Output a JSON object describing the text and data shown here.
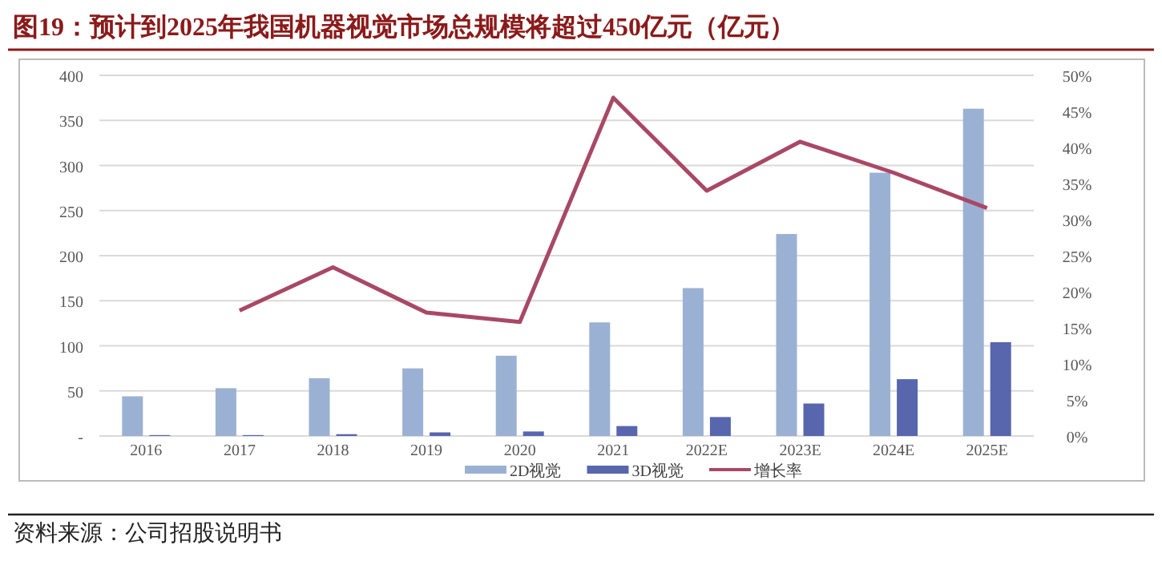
{
  "chart_data": {
    "type": "bar",
    "title": "图19：预计到2025年我国机器视觉市场总规模将超过450亿元（亿元）",
    "annotations": [
      "资料来源：公司招股说明书"
    ],
    "categories": [
      "2016",
      "2017",
      "2018",
      "2019",
      "2020",
      "2021",
      "2022E",
      "2023E",
      "2024E",
      "2025E"
    ],
    "series": [
      {
        "name": "2D视觉",
        "color": "#9bb1d4",
        "values": [
          44,
          53,
          64,
          75,
          89,
          126,
          164,
          224,
          292,
          363
        ]
      },
      {
        "name": "3D视觉",
        "color": "#5766ad",
        "values": [
          1,
          1,
          2,
          4,
          5,
          11,
          21,
          36,
          63,
          104
        ]
      },
      {
        "name": "增长率",
        "type": "line",
        "axis": "y2",
        "color": "#a94866",
        "values": [
          null,
          17.4,
          23.4,
          17.1,
          15.8,
          46.9,
          34.0,
          40.8,
          36.5,
          31.6
        ]
      }
    ],
    "ylim": [
      0,
      400
    ],
    "yticks": [
      {
        "value": 0,
        "label": "-"
      },
      50,
      100,
      150,
      200,
      250,
      300,
      350,
      400
    ],
    "y2lim": [
      0,
      50
    ],
    "y2ticks": [
      {
        "value": 0,
        "label": "0%"
      },
      {
        "value": 5,
        "label": "5%"
      },
      {
        "value": 10,
        "label": "10%"
      },
      {
        "value": 15,
        "label": "15%"
      },
      {
        "value": 20,
        "label": "20%"
      },
      {
        "value": 25,
        "label": "25%"
      },
      {
        "value": 30,
        "label": "30%"
      },
      {
        "value": 35,
        "label": "35%"
      },
      {
        "value": 40,
        "label": "40%"
      },
      {
        "value": 45,
        "label": "45%"
      },
      {
        "value": 50,
        "label": "50%"
      }
    ],
    "grid": "y",
    "legend": "bottom"
  }
}
